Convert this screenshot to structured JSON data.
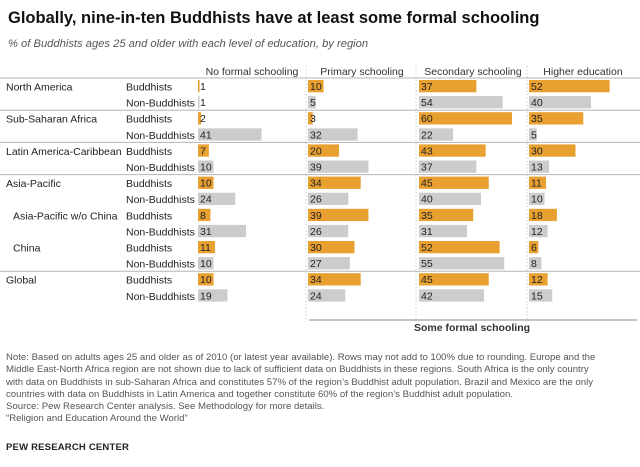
{
  "header": {
    "title": "Globally, nine-in-ten Buddhists have at least some formal schooling",
    "subtitle": "% of Buddhists ages 25 and older with each level of education, by region"
  },
  "chart_data": {
    "type": "bar",
    "title": "Globally, nine-in-ten Buddhists have at least some formal schooling",
    "subtitle": "% of Buddhists ages 25 and older with each level of education, by region",
    "columns": [
      "No formal schooling",
      "Primary schooling",
      "Secondary schooling",
      "Higher education"
    ],
    "bracket_label": "Some formal schooling",
    "value_range": [
      0,
      100
    ],
    "regions": [
      {
        "name": "North America",
        "indent": false,
        "series": [
          {
            "name": "Buddhists",
            "values": [
              1,
              10,
              37,
              52
            ]
          },
          {
            "name": "Non-Buddhists",
            "values": [
              1,
              5,
              54,
              40
            ]
          }
        ]
      },
      {
        "name": "Sub-Saharan Africa",
        "indent": false,
        "series": [
          {
            "name": "Buddhists",
            "values": [
              2,
              3,
              60,
              35
            ]
          },
          {
            "name": "Non-Buddhists",
            "values": [
              41,
              32,
              22,
              5
            ]
          }
        ]
      },
      {
        "name": "Latin America-Caribbean",
        "indent": false,
        "series": [
          {
            "name": "Buddhists",
            "values": [
              7,
              20,
              43,
              30
            ]
          },
          {
            "name": "Non-Buddhists",
            "values": [
              10,
              39,
              37,
              13
            ]
          }
        ]
      },
      {
        "name": "Asia-Pacific",
        "indent": false,
        "series": [
          {
            "name": "Buddhists",
            "values": [
              10,
              34,
              45,
              11
            ]
          },
          {
            "name": "Non-Buddhists",
            "values": [
              24,
              26,
              40,
              10
            ]
          }
        ]
      },
      {
        "name": "Asia-Pacific w/o China",
        "indent": true,
        "series": [
          {
            "name": "Buddhists",
            "values": [
              8,
              39,
              35,
              18
            ]
          },
          {
            "name": "Non-Buddhists",
            "values": [
              31,
              26,
              31,
              12
            ]
          }
        ]
      },
      {
        "name": "China",
        "indent": true,
        "series": [
          {
            "name": "Buddhists",
            "values": [
              11,
              30,
              52,
              6
            ]
          },
          {
            "name": "Non-Buddhists",
            "values": [
              10,
              27,
              55,
              8
            ]
          }
        ]
      },
      {
        "name": "Global",
        "indent": false,
        "series": [
          {
            "name": "Buddhists",
            "values": [
              10,
              34,
              45,
              12
            ]
          },
          {
            "name": "Non-Buddhists",
            "values": [
              19,
              24,
              42,
              15
            ]
          }
        ]
      }
    ]
  },
  "colors": {
    "buddhists_bar": "#E8A030",
    "non_buddhists_bar": "#CCCCCC",
    "rule": "#B5B5B5",
    "dotted": "#CFCFCF"
  },
  "footer": {
    "note_lines": [
      "Note: Based on adults ages 25 and older as of 2010 (or latest year available). Rows may not add to 100% due to rounding. Europe and the",
      "Middle East-North Africa region are not shown due to lack of sufficient data on Buddhists in these regions. South Africa is the only country",
      "with data on Buddhists in sub-Saharan Africa and constitutes 57% of the region’s Buddhist adult population. Brazil and Mexico are the only",
      "countries with data on Buddhists in Latin America and together constitute 60% of the region’s Buddhist adult population."
    ],
    "source": "Source: Pew Research Center analysis. See Methodology for more details.",
    "report": "“Religion and Education Around the World”",
    "logo": "PEW RESEARCH CENTER"
  }
}
